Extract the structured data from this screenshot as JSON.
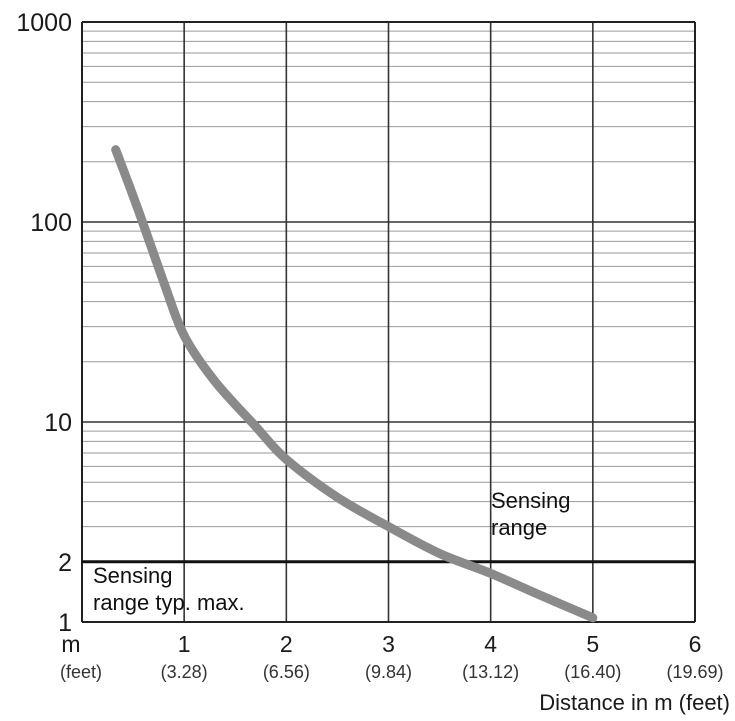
{
  "chart_data": {
    "type": "line",
    "title": "",
    "xlabel": "Distance in m (feet)",
    "ylabel": "",
    "x_unit_label": "m",
    "x_unit_sublabel": "(feet)",
    "x_ticks": [
      {
        "value": 1,
        "label": "1",
        "sublabel": "(3.28)"
      },
      {
        "value": 2,
        "label": "2",
        "sublabel": "(6.56)"
      },
      {
        "value": 3,
        "label": "3",
        "sublabel": "(9.84)"
      },
      {
        "value": 4,
        "label": "4",
        "sublabel": "(13.12)"
      },
      {
        "value": 5,
        "label": "5",
        "sublabel": "(16.40)"
      },
      {
        "value": 6,
        "label": "6",
        "sublabel": "(19.69)"
      }
    ],
    "y_ticks": [
      {
        "value": 1,
        "label": "1"
      },
      {
        "value": 2,
        "label": "2"
      },
      {
        "value": 10,
        "label": "10"
      },
      {
        "value": 100,
        "label": "100"
      },
      {
        "value": 1000,
        "label": "1000"
      }
    ],
    "xlim": [
      0,
      6
    ],
    "ylim": [
      1,
      1000
    ],
    "y_scale": "log",
    "grid": true,
    "series": [
      {
        "color": "#8a8a8a",
        "points": [
          {
            "x": 0.33,
            "y": 230
          },
          {
            "x": 0.55,
            "y": 115
          },
          {
            "x": 0.8,
            "y": 50
          },
          {
            "x": 1.0,
            "y": 27
          },
          {
            "x": 1.3,
            "y": 16
          },
          {
            "x": 1.7,
            "y": 9.5
          },
          {
            "x": 2.0,
            "y": 6.5
          },
          {
            "x": 2.5,
            "y": 4.2
          },
          {
            "x": 3.0,
            "y": 3.0
          },
          {
            "x": 3.5,
            "y": 2.2
          },
          {
            "x": 4.0,
            "y": 1.75
          },
          {
            "x": 4.5,
            "y": 1.35
          },
          {
            "x": 5.0,
            "y": 1.05
          }
        ]
      }
    ],
    "reference_line": {
      "y": 2,
      "color": "#111111"
    },
    "annotations": {
      "above": [
        "Sensing",
        "range"
      ],
      "below": [
        "Sensing",
        "range typ. max."
      ]
    },
    "colors": {
      "grid": "#9a9a9a",
      "major_grid": "#333333",
      "curve": "#8a8a8a"
    }
  }
}
